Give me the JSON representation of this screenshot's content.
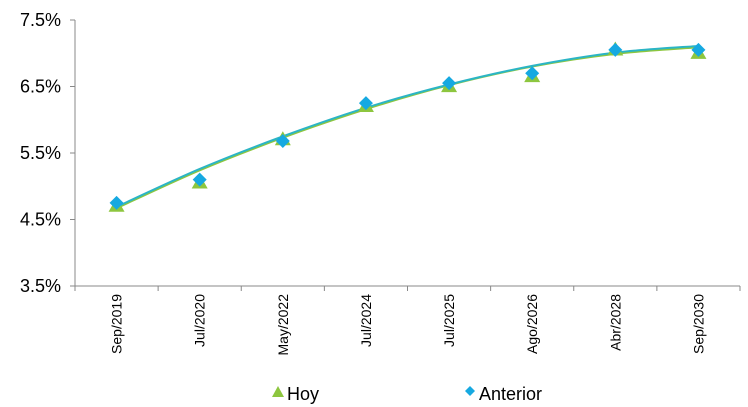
{
  "chart_data": {
    "type": "scatter",
    "categories": [
      "Sep/2019",
      "Jul/2020",
      "May/2022",
      "Jul/2024",
      "Jul/2025",
      "Ago/2026",
      "Abr/2028",
      "Sep/2030"
    ],
    "series": [
      {
        "name": "Hoy",
        "marker": "triangle",
        "color": "#8DC63F",
        "values": [
          4.7,
          5.05,
          5.7,
          6.2,
          6.5,
          6.65,
          7.05,
          7.0
        ]
      },
      {
        "name": "Anterior",
        "marker": "diamond",
        "color": "#16A9E1",
        "values": [
          4.75,
          5.1,
          5.68,
          6.25,
          6.55,
          6.7,
          7.05,
          7.05
        ]
      }
    ],
    "trendlines": [
      {
        "series": "Hoy",
        "color": "#8DC63F",
        "values": [
          4.67,
          5.24,
          5.73,
          6.16,
          6.52,
          6.8,
          6.99,
          7.09
        ]
      },
      {
        "series": "Anterior",
        "color": "#2BB5C5",
        "values": [
          4.69,
          5.26,
          5.75,
          6.18,
          6.53,
          6.81,
          7.01,
          7.11
        ]
      }
    ],
    "y_ticks": [
      "7.5%",
      "6.5%",
      "5.5%",
      "4.5%",
      "3.5%"
    ],
    "y_tick_values": [
      7.5,
      6.5,
      5.5,
      4.5,
      3.5
    ],
    "ylim": [
      3.5,
      7.5
    ],
    "grid": false,
    "legend_position": "bottom"
  }
}
